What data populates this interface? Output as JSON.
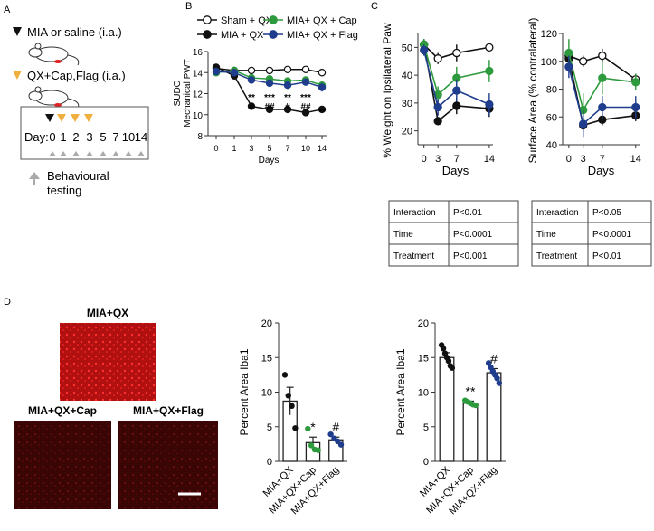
{
  "colors": {
    "black": "#111111",
    "green": "#2e9a3e",
    "navy": "#1f3d8c",
    "orange": "#f0b040",
    "gray": "#aaaaaa",
    "red": "#cc1a1a"
  },
  "panel_labels": {
    "a": "A",
    "b": "B",
    "c": "C",
    "d": "D"
  },
  "panel_a": {
    "line1": "MIA or saline (i.a.)",
    "line2": "QX+Cap,Flag (i.a.)",
    "day_label": "Day:",
    "days": [
      "0",
      "1",
      "2",
      "3",
      "5",
      "7",
      "10",
      "14"
    ],
    "behaviour_line1": "Behavioural",
    "behaviour_line2": "testing"
  },
  "stats_tables": [
    {
      "rows": [
        [
          "Interaction",
          "P<0.01"
        ],
        [
          "Time",
          "P<0.0001"
        ],
        [
          "Treatment",
          "P<0.001"
        ]
      ]
    },
    {
      "rows": [
        [
          "Interaction",
          "P<0.05"
        ],
        [
          "Time",
          "P<0.0001"
        ],
        [
          "Treatment",
          "P<0.01"
        ]
      ]
    }
  ],
  "images": [
    {
      "label": "MIA+QX"
    },
    {
      "label": "MIA+QX+Cap"
    },
    {
      "label": "MIA+QX+Flag"
    }
  ],
  "chart_data": [
    {
      "id": "pwt",
      "type": "line",
      "title": "",
      "ylabel_line1": "SUDO",
      "ylabel_line2": "Mechanical PWT",
      "xlabel": "Days",
      "x": [
        0,
        1,
        3,
        5,
        7,
        10,
        14
      ],
      "xtick_labels": [
        "0",
        "1",
        "3",
        "5",
        "7",
        "10",
        "14"
      ],
      "ylim": [
        8,
        16
      ],
      "yticks": [
        8,
        10,
        12,
        14,
        16
      ],
      "series": [
        {
          "name": "Sham + QX",
          "color": "#111111",
          "fill": "white",
          "values": [
            14.4,
            14.2,
            14.2,
            14.2,
            14.3,
            14.3,
            14.0
          ],
          "errors": [
            0.15,
            0.15,
            0.15,
            0.15,
            0.15,
            0.15,
            0.2
          ]
        },
        {
          "name": "MIA + QX",
          "color": "#111111",
          "fill": "#111111",
          "values": [
            14.5,
            13.7,
            10.8,
            10.5,
            10.5,
            10.2,
            10.5
          ],
          "errors": [
            0.15,
            0.2,
            0.2,
            0.2,
            0.2,
            0.2,
            0.2
          ]
        },
        {
          "name": "MIA+ QX + Cap",
          "color": "#2e9a3e",
          "fill": "#2e9a3e",
          "values": [
            14.0,
            14.2,
            13.5,
            13.4,
            13.2,
            13.3,
            12.8
          ],
          "errors": [
            0.2,
            0.2,
            0.3,
            0.3,
            0.3,
            0.3,
            0.4
          ]
        },
        {
          "name": "MIA+ QX + Flag",
          "color": "#1f3d8c",
          "fill": "#1f3d8c",
          "values": [
            14.1,
            14.0,
            13.3,
            13.0,
            12.8,
            13.1,
            12.6
          ],
          "errors": [
            0.2,
            0.2,
            0.3,
            0.3,
            0.3,
            0.3,
            0.4
          ]
        }
      ],
      "annotations": [
        {
          "x": 3,
          "row1": "**",
          "row2": "#"
        },
        {
          "x": 5,
          "row1": "***",
          "row2": "##"
        },
        {
          "x": 7,
          "row1": "**",
          "row2": "#"
        },
        {
          "x": 10,
          "row1": "***",
          "row2": "##"
        },
        {
          "x": 14,
          "row1": "",
          "row2": "**"
        }
      ]
    },
    {
      "id": "weight",
      "type": "line",
      "ylabel": "% Weight on Ipsilateral Paw",
      "xlabel": "Days",
      "x": [
        0,
        3,
        7,
        14
      ],
      "xtick_labels": [
        "0",
        "3",
        "7",
        "14"
      ],
      "ylim": [
        15,
        55
      ],
      "yticks": [
        20,
        30,
        40,
        50
      ],
      "series": [
        {
          "name": "Sham + QX",
          "color": "#111111",
          "fill": "white",
          "values": [
            51,
            46,
            48,
            50
          ],
          "errors": [
            2,
            2,
            3,
            1.5
          ]
        },
        {
          "name": "MIA + QX",
          "color": "#111111",
          "fill": "#111111",
          "values": [
            51,
            23.5,
            29,
            28
          ],
          "errors": [
            2,
            1.5,
            3,
            3
          ]
        },
        {
          "name": "MIA+ QX + Cap",
          "color": "#2e9a3e",
          "fill": "#2e9a3e",
          "values": [
            51,
            33,
            39,
            41.5
          ],
          "errors": [
            2,
            3,
            4,
            4
          ]
        },
        {
          "name": "MIA+ QX + Flag",
          "color": "#1f3d8c",
          "fill": "#1f3d8c",
          "values": [
            49,
            28.5,
            34.5,
            29.5
          ],
          "errors": [
            2,
            3,
            4,
            4
          ]
        }
      ]
    },
    {
      "id": "surface",
      "type": "line",
      "ylabel": "Surface Area (% contralateral)",
      "xlabel": "Days",
      "x": [
        0,
        3,
        7,
        14
      ],
      "xtick_labels": [
        "0",
        "3",
        "7",
        "14"
      ],
      "ylim": [
        40,
        120
      ],
      "yticks": [
        40,
        60,
        80,
        100,
        120
      ],
      "series": [
        {
          "name": "Sham + QX",
          "color": "#111111",
          "fill": "white",
          "values": [
            104,
            100,
            104,
            87
          ],
          "errors": [
            4,
            4,
            5,
            4
          ]
        },
        {
          "name": "MIA + QX",
          "color": "#111111",
          "fill": "#111111",
          "values": [
            102,
            54,
            58,
            61
          ],
          "errors": [
            4,
            4,
            4,
            4
          ]
        },
        {
          "name": "MIA+ QX + Cap",
          "color": "#2e9a3e",
          "fill": "#2e9a3e",
          "values": [
            106,
            65,
            88,
            85
          ],
          "errors": [
            10,
            12,
            12,
            6
          ]
        },
        {
          "name": "MIA+ QX + Flag",
          "color": "#1f3d8c",
          "fill": "#1f3d8c",
          "values": [
            96,
            55,
            67,
            67
          ],
          "errors": [
            8,
            10,
            8,
            8
          ]
        }
      ]
    },
    {
      "id": "iba1_left",
      "type": "bar",
      "ylabel": "Percent Area Iba1",
      "categories": [
        "MIA+QX",
        "MIA+QX+Cap",
        "MIA+QX+Flag"
      ],
      "values": [
        8.7,
        2.7,
        3.1
      ],
      "errors": [
        2.0,
        0.8,
        0.4
      ],
      "points": [
        [
          12.5,
          9.5,
          8.0,
          4.8
        ],
        [
          4.7,
          2.3,
          1.7,
          1.6
        ],
        [
          3.9,
          3.3,
          2.9,
          2.4
        ]
      ],
      "point_colors": [
        "#111111",
        "#2e9a3e",
        "#1f3d8c"
      ],
      "sig": [
        "",
        "*",
        "#"
      ],
      "ylim": [
        0,
        20
      ],
      "yticks": [
        0,
        5,
        10,
        15,
        20
      ]
    },
    {
      "id": "iba1_right",
      "type": "bar",
      "ylabel": "Percent Area Iba1",
      "categories": [
        "MIA+QX",
        "MIA+QX+Cap",
        "MIA+QX+Flag"
      ],
      "values": [
        15.0,
        8.4,
        12.8
      ],
      "errors": [
        0.7,
        0.3,
        0.6
      ],
      "points": [
        [
          16.8,
          16.3,
          15.6,
          15.0,
          14.5,
          13.8,
          13.5
        ],
        [
          8.8,
          8.6,
          8.4,
          8.2,
          8.1
        ],
        [
          14.2,
          13.6,
          13.0,
          12.5,
          12.0,
          11.3
        ]
      ],
      "point_colors": [
        "#111111",
        "#2e9a3e",
        "#1f3d8c"
      ],
      "sig": [
        "",
        "**",
        "#"
      ],
      "ylim": [
        0,
        20
      ],
      "yticks": [
        0,
        5,
        10,
        15,
        20
      ]
    }
  ]
}
